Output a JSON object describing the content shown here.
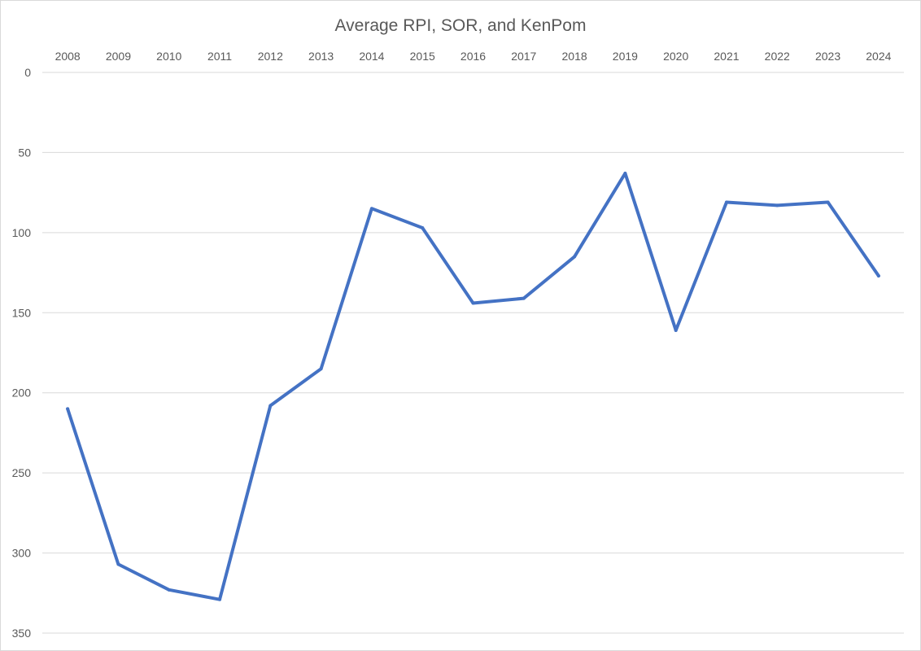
{
  "chart_data": {
    "type": "line",
    "title": "Average RPI, SOR, and KenPom",
    "xlabel": "",
    "ylabel": "",
    "x_axis_position": "top",
    "y_axis_reversed": true,
    "ylim": [
      0,
      350
    ],
    "y_ticks": [
      0,
      50,
      100,
      150,
      200,
      250,
      300,
      350
    ],
    "grid": true,
    "legend": "none",
    "categories": [
      "2008",
      "2009",
      "2010",
      "2011",
      "2012",
      "2013",
      "2014",
      "2015",
      "2016",
      "2017",
      "2018",
      "2019",
      "2020",
      "2021",
      "2022",
      "2023",
      "2024"
    ],
    "series": [
      {
        "color": "#4472c4",
        "values": [
          210,
          307,
          323,
          329,
          208,
          185,
          85,
          97,
          144,
          141,
          115,
          63,
          161,
          81,
          83,
          81,
          127
        ]
      }
    ]
  }
}
